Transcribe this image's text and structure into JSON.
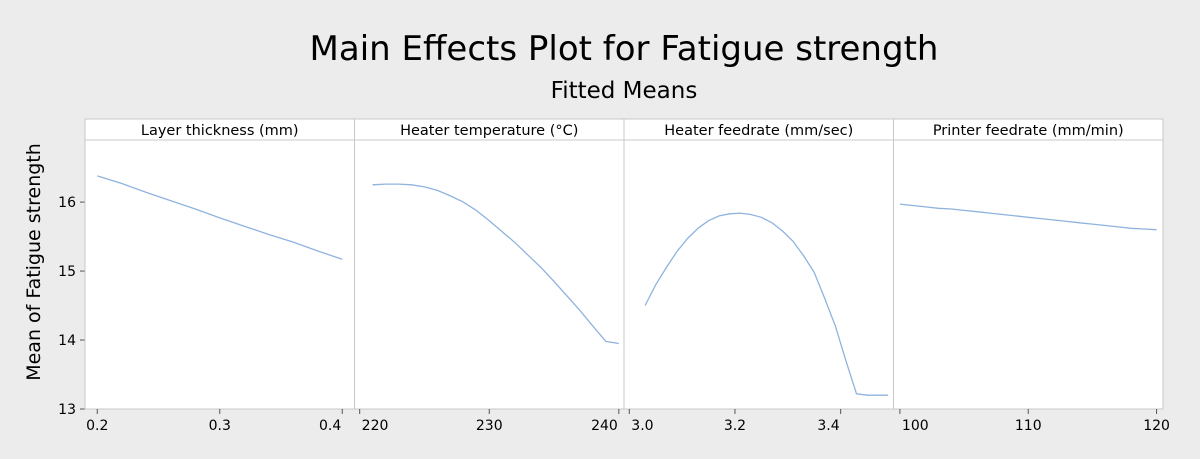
{
  "chart_data": {
    "type": "line",
    "title": "Main Effects Plot for Fatigue strength",
    "subtitle": "Fitted Means",
    "ylabel": "Mean of Fatigue strength",
    "ylim": [
      13,
      16.9
    ],
    "yticks": [
      "13",
      "14",
      "15",
      "16"
    ],
    "ytick_values": [
      13,
      14,
      15,
      16
    ],
    "series_color": "#8fb3de",
    "panels": [
      {
        "name": "Layer thickness (mm)",
        "xlim": [
          0.19,
          0.41
        ],
        "xticks": [
          "0.2",
          "0.3",
          "0.4"
        ],
        "xtick_values": [
          0.2,
          0.3,
          0.4
        ],
        "x": [
          0.2,
          0.22,
          0.24,
          0.26,
          0.28,
          0.3,
          0.32,
          0.34,
          0.36,
          0.38,
          0.4
        ],
        "y": [
          16.38,
          16.27,
          16.14,
          16.02,
          15.9,
          15.77,
          15.65,
          15.53,
          15.42,
          15.29,
          15.17
        ]
      },
      {
        "name": "Heater temperature (°C)",
        "xlim": [
          219.6,
          240.4
        ],
        "xticks": [
          "220",
          "230",
          "240"
        ],
        "xtick_values": [
          220,
          230,
          240
        ],
        "x": [
          221,
          222,
          223,
          224,
          225,
          226,
          227,
          228,
          229,
          230,
          231,
          232,
          233,
          234,
          235,
          236,
          237,
          238,
          239,
          240
        ],
        "y": [
          16.25,
          16.26,
          16.26,
          16.25,
          16.22,
          16.17,
          16.09,
          16.0,
          15.88,
          15.73,
          15.57,
          15.41,
          15.23,
          15.05,
          14.85,
          14.64,
          14.43,
          14.2,
          13.98,
          13.95
        ]
      },
      {
        "name": "Heater feedrate (mm/sec)",
        "xlim": [
          2.99,
          3.5
        ],
        "xticks": [
          "3.0",
          "3.2",
          "3.4"
        ],
        "xtick_values": [
          3.0,
          3.2,
          3.4
        ],
        "x": [
          3.03,
          3.05,
          3.07,
          3.09,
          3.11,
          3.13,
          3.15,
          3.17,
          3.19,
          3.21,
          3.23,
          3.25,
          3.27,
          3.29,
          3.31,
          3.33,
          3.35,
          3.37,
          3.39,
          3.41,
          3.43,
          3.45,
          3.47,
          3.49
        ],
        "y": [
          14.5,
          14.8,
          15.05,
          15.28,
          15.47,
          15.62,
          15.73,
          15.8,
          15.83,
          15.84,
          15.82,
          15.78,
          15.7,
          15.58,
          15.43,
          15.22,
          14.98,
          14.6,
          14.2,
          13.7,
          13.22,
          13.2,
          13.2,
          13.2
        ]
      },
      {
        "name": "Printer feedrate (mm/min)",
        "xlim": [
          99.5,
          120.5
        ],
        "xticks": [
          "100",
          "110",
          "120"
        ],
        "xtick_values": [
          100,
          110,
          120
        ],
        "x": [
          100,
          101,
          102,
          103,
          104,
          105,
          106,
          107,
          108,
          109,
          110,
          111,
          112,
          113,
          114,
          115,
          116,
          117,
          118,
          119,
          120
        ],
        "y": [
          15.97,
          15.95,
          15.93,
          15.91,
          15.9,
          15.88,
          15.86,
          15.84,
          15.82,
          15.8,
          15.78,
          15.76,
          15.74,
          15.72,
          15.7,
          15.68,
          15.66,
          15.64,
          15.62,
          15.61,
          15.6
        ]
      }
    ]
  }
}
